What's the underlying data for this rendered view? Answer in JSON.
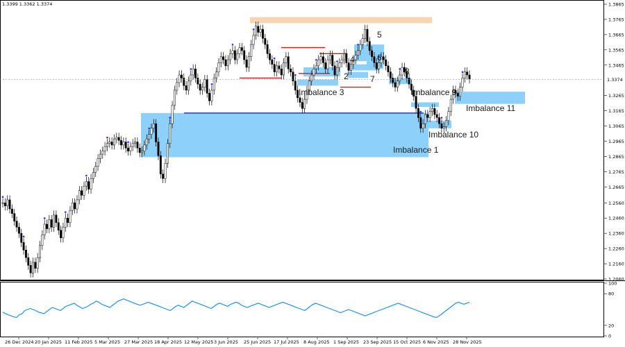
{
  "chart_data": {
    "type": "candlestick",
    "ohlc_readout": "1.3399 1.3362 1.3374",
    "current_price": "1.3374",
    "y_ticks": [
      "1.3865",
      "1.3765",
      "1.3665",
      "1.3565",
      "1.3465",
      "1.3365",
      "1.3265",
      "1.3165",
      "1.3065",
      "1.2965",
      "1.2865",
      "1.2765",
      "1.2665",
      "1.2560",
      "1.2460",
      "1.2360",
      "1.2260",
      "1.2160",
      "1.2060"
    ],
    "osc_ticks": [
      "100",
      "80",
      "20",
      "0"
    ],
    "x_ticks": [
      "26 Dec 2024",
      "20 Jan 2025",
      "11 Feb 2025",
      "5 Mar 2025",
      "27 Mar 2025",
      "18 Apr 2025",
      "12 May 2025",
      "3 Jun 2025",
      "25 Jun 2025",
      "17 Jul 2025",
      "8 Aug 2025",
      "1 Sep 2025",
      "23 Sep 2025",
      "15 Oct 2025",
      "6 Nov 2025",
      "28 Nov 2025"
    ],
    "close_series": [
      1.256,
      1.254,
      1.258,
      1.252,
      1.249,
      1.244,
      1.24,
      1.236,
      1.23,
      1.225,
      1.22,
      1.215,
      1.21,
      1.217,
      1.213,
      1.22,
      1.228,
      1.235,
      1.242,
      1.239,
      1.245,
      1.24,
      1.248,
      1.243,
      1.238,
      1.233,
      1.24,
      1.246,
      1.243,
      1.251,
      1.256,
      1.252,
      1.258,
      1.264,
      1.261,
      1.267,
      1.27,
      1.265,
      1.272,
      1.276,
      1.28,
      1.285,
      1.288,
      1.29,
      1.293,
      1.295,
      1.296,
      1.294,
      1.298,
      1.299,
      1.297,
      1.294,
      1.296,
      1.292,
      1.29,
      1.293,
      1.295,
      1.296,
      1.292,
      1.289,
      1.29,
      1.294,
      1.298,
      1.301,
      1.305,
      1.308,
      1.296,
      1.287,
      1.275,
      1.272,
      1.282,
      1.295,
      1.308,
      1.32,
      1.33,
      1.335,
      1.34,
      1.338,
      1.333,
      1.33,
      1.336,
      1.34,
      1.344,
      1.338,
      1.334,
      1.33,
      1.332,
      1.337,
      1.328,
      1.323,
      1.33,
      1.338,
      1.342,
      1.348,
      1.352,
      1.35,
      1.346,
      1.35,
      1.354,
      1.356,
      1.35,
      1.354,
      1.358,
      1.356,
      1.35,
      1.345,
      1.352,
      1.36,
      1.366,
      1.372,
      1.368,
      1.37,
      1.364,
      1.36,
      1.354,
      1.35,
      1.347,
      1.342,
      1.346,
      1.344,
      1.34,
      1.348,
      1.352,
      1.344,
      1.342,
      1.336,
      1.33,
      1.325,
      1.322,
      1.318,
      1.324,
      1.33,
      1.336,
      1.34,
      1.344,
      1.346,
      1.35,
      1.352,
      1.348,
      1.344,
      1.35,
      1.353,
      1.346,
      1.34,
      1.345,
      1.348,
      1.35,
      1.354,
      1.348,
      1.343,
      1.347,
      1.35,
      1.353,
      1.356,
      1.36,
      1.364,
      1.37,
      1.362,
      1.356,
      1.352,
      1.348,
      1.344,
      1.348,
      1.352,
      1.35,
      1.346,
      1.342,
      1.338,
      1.335,
      1.332,
      1.336,
      1.34,
      1.345,
      1.342,
      1.338,
      1.334,
      1.33,
      1.326,
      1.318,
      1.312,
      1.305,
      1.308,
      1.314,
      1.312,
      1.316,
      1.318,
      1.314,
      1.312,
      1.308,
      1.305,
      1.306,
      1.31,
      1.316,
      1.324,
      1.33,
      1.328,
      1.326,
      1.332,
      1.338,
      1.342,
      1.34,
      1.3374
    ],
    "oscillator_series": [
      45,
      42,
      40,
      38,
      36,
      35,
      40,
      42,
      48,
      50,
      52,
      50,
      48,
      45,
      44,
      42,
      46,
      50,
      54,
      52,
      50,
      48,
      52,
      56,
      58,
      60,
      62,
      58,
      55,
      52,
      54,
      56,
      60,
      62,
      66,
      64,
      60,
      58,
      56,
      54,
      58,
      62,
      66,
      68,
      70,
      68,
      66,
      64,
      62,
      60,
      58,
      60,
      62,
      64,
      62,
      60,
      58,
      56,
      54,
      52,
      50,
      48,
      52,
      56,
      58,
      56,
      54,
      58,
      62,
      66,
      64,
      62,
      60,
      58,
      56,
      54,
      52,
      56,
      60,
      62,
      60,
      58,
      56,
      60,
      62,
      64,
      62,
      58,
      56,
      54,
      56,
      58,
      60,
      62,
      60,
      58,
      56,
      54,
      56,
      58,
      60,
      62,
      64,
      62,
      60,
      58,
      56,
      54,
      52,
      50,
      48,
      52,
      56,
      60,
      62,
      60,
      58,
      56,
      54,
      52,
      50,
      48,
      46,
      44,
      46,
      48,
      50,
      48,
      46,
      44,
      42,
      40,
      38,
      40,
      42,
      44,
      46,
      48,
      50,
      52,
      54,
      56,
      58,
      60,
      62,
      60,
      58,
      56,
      54,
      52,
      50,
      48,
      46,
      44,
      42,
      40,
      38,
      36,
      35,
      38,
      42,
      46,
      50,
      54,
      58,
      62,
      64,
      62,
      60,
      62,
      64
    ],
    "zones": [
      {
        "label": "Imbalance 1",
        "top": 1.315,
        "bottom": 1.286
      },
      {
        "label": "Imbalance 3",
        "top": 1.337,
        "bottom": 1.333
      },
      {
        "label": "Imbalance 9",
        "top": 1.322,
        "bottom": 1.319
      },
      {
        "label": "Imbalance 10",
        "top": 1.31,
        "bottom": 1.305
      },
      {
        "label": "Imbalance 11",
        "top": 1.329,
        "bottom": 1.321
      },
      {
        "label": "",
        "top": 1.378,
        "bottom": 1.374
      },
      {
        "label": "2",
        "top": 1.345,
        "bottom": 1.339
      },
      {
        "label": "4",
        "top": 1.347,
        "bottom": 1.343
      },
      {
        "label": "5",
        "top": 1.36,
        "bottom": 1.349
      },
      {
        "label": "6",
        "top": 1.349,
        "bottom": 1.344
      },
      {
        "label": "7",
        "top": 1.342,
        "bottom": 1.338
      },
      {
        "label": "8",
        "top": 1.338,
        "bottom": 1.334
      }
    ],
    "lines": [
      {
        "price": 1.315,
        "color": "#1f3fbf"
      },
      {
        "price": 1.338,
        "color": "#cc1f1f"
      },
      {
        "price": 1.358,
        "color": "#cc1f1f"
      },
      {
        "price": 1.354,
        "color": "#cc1f1f"
      },
      {
        "price": 1.341,
        "color": "#cc1f1f"
      },
      {
        "price": 1.332,
        "color": "#cc1f1f"
      }
    ],
    "colors": {
      "zone": "#87cefa",
      "zone_top": "#f5d2b0",
      "candle": "#000000",
      "osc": "#1e90ff",
      "marker": "#2a2aff"
    },
    "grid": false
  }
}
